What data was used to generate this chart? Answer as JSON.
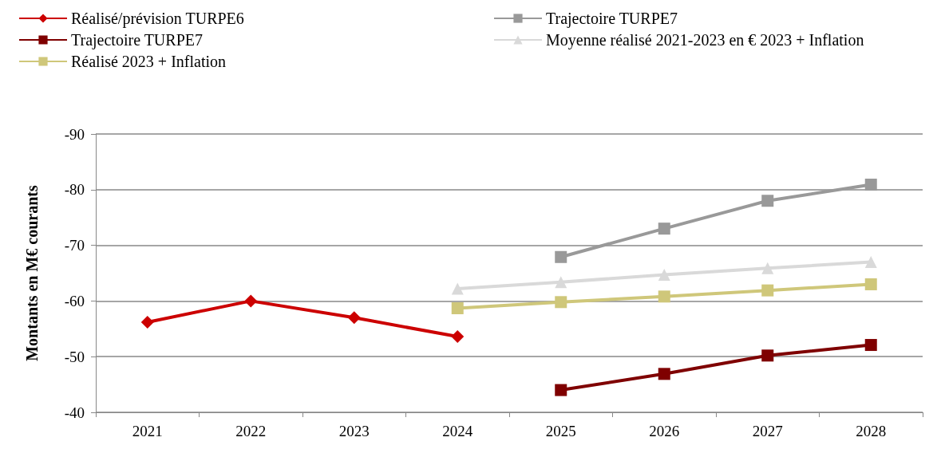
{
  "chart_data": {
    "type": "line",
    "ylabel": "Montants en M€ courants",
    "categories": [
      "2021",
      "2022",
      "2023",
      "2024",
      "2025",
      "2026",
      "2027",
      "2028"
    ],
    "series": [
      {
        "name": "Réalisé/prévision TURPE6",
        "color": "#cc0000",
        "marker": "diamond",
        "values": [
          -56.2,
          -60,
          -57,
          -53.6,
          null,
          null,
          null,
          null
        ]
      },
      {
        "name": "Trajectoire TURPE7",
        "color": "#999999",
        "marker": "square",
        "values": [
          null,
          null,
          null,
          null,
          -67.9,
          -73,
          -78,
          -80.9
        ]
      },
      {
        "name": "Trajectoire TURPE7 ",
        "color": "#7f0000",
        "marker": "square",
        "values": [
          null,
          null,
          null,
          null,
          -44,
          -46.9,
          -50.2,
          -52.1
        ]
      },
      {
        "name": "Moyenne réalisé 2021-2023 en € 2023 + Inflation",
        "color": "#d9d9d9",
        "marker": "triangle",
        "values": [
          null,
          null,
          null,
          -62.2,
          -63.4,
          -64.7,
          -65.9,
          -67
        ]
      },
      {
        "name": "Réalisé 2023 + Inflation",
        "color": "#cfc77a",
        "marker": "square",
        "values": [
          null,
          null,
          null,
          -58.7,
          -59.8,
          -60.8,
          -61.9,
          -63
        ]
      }
    ],
    "ylim": [
      -40,
      -90
    ],
    "yticks": [
      -40,
      -50,
      -60,
      -70,
      -80,
      -90
    ],
    "grid": "y",
    "legend": "top",
    "line_style": "solid"
  }
}
